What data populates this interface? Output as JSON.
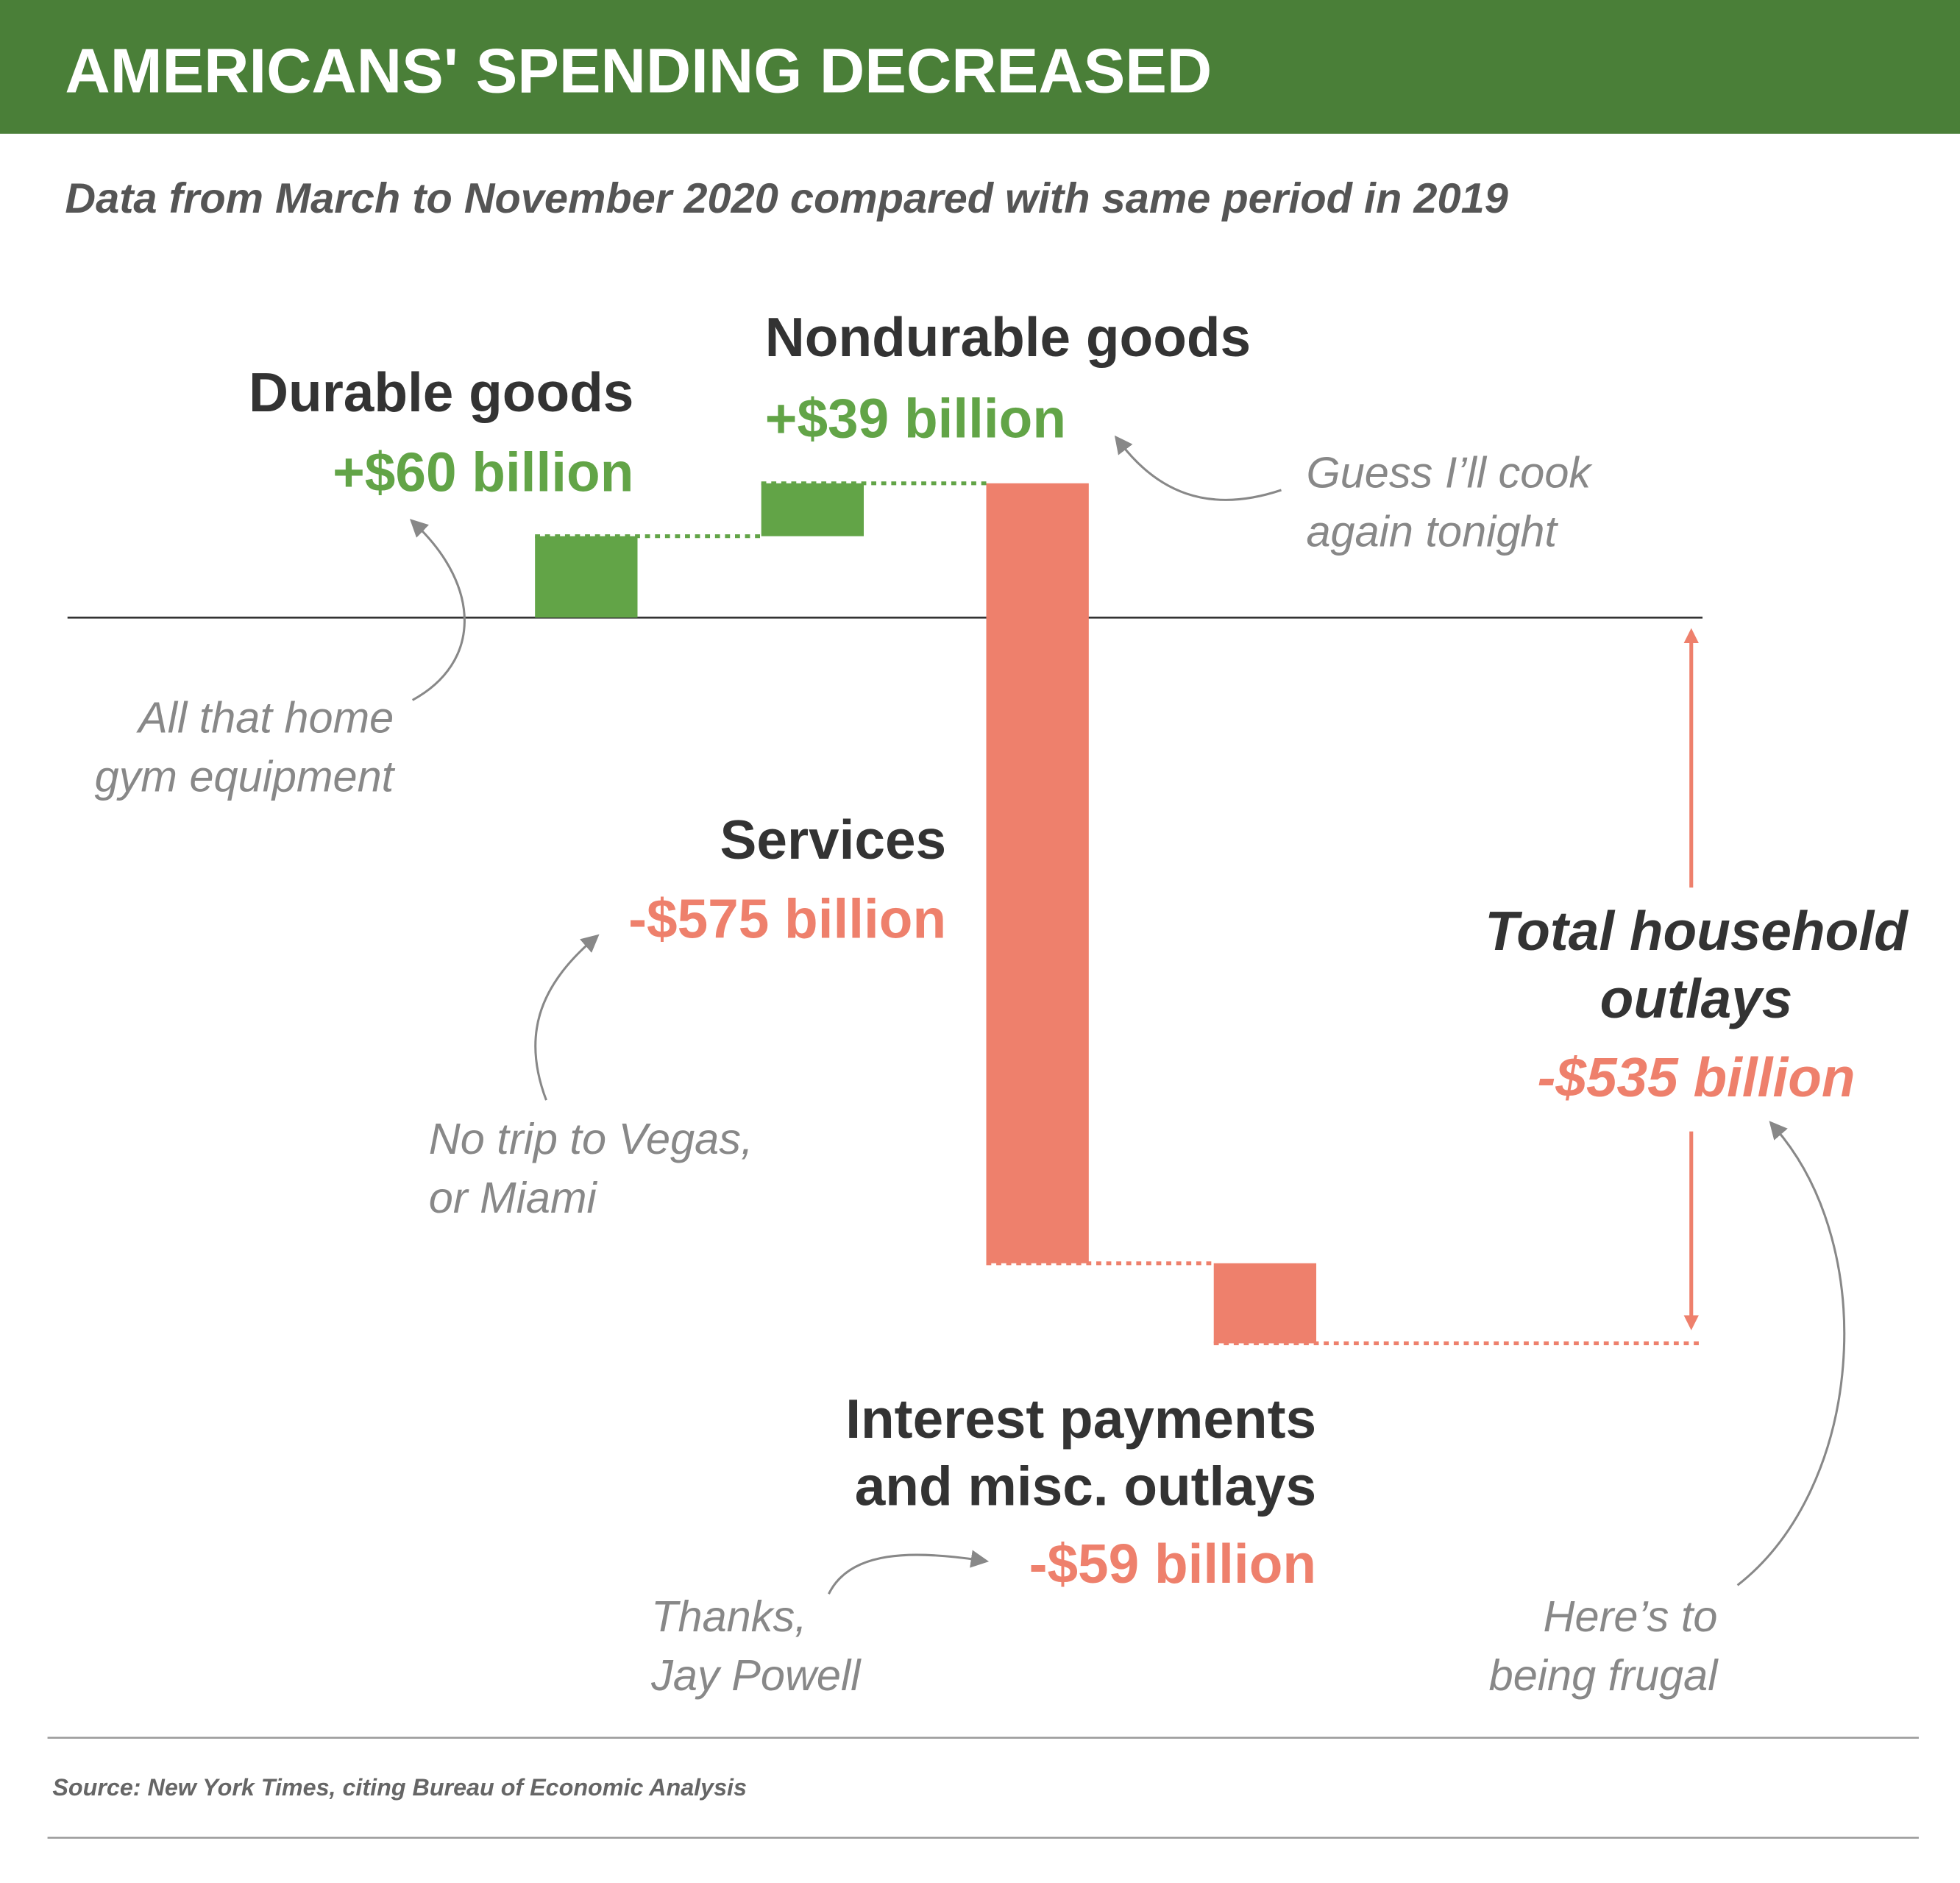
{
  "chart_data": {
    "type": "waterfall",
    "title": "AMERICANS' SPENDING DECREASED",
    "subtitle": "Data from March to November 2020 compared with same period in 2019",
    "categories": [
      "Durable goods",
      "Nondurable goods",
      "Services",
      "Interest payments\nand misc. outlays"
    ],
    "values": [
      60,
      39,
      -575,
      -59
    ],
    "value_labels": [
      "+$60 billion",
      "+$39 billion",
      "-$575 billion",
      "-$59 billion"
    ],
    "colors": {
      "positive": "#62a447",
      "negative": "#ee806c"
    },
    "total": {
      "name": "Total household\noutlays",
      "value": -535,
      "value_label": "-$535 billion"
    },
    "annotations": [
      "All that home\ngym equipment",
      "Guess I’ll cook\nagain tonight",
      "No trip to Vegas,\nor Miami",
      "Thanks,\nJay Powell",
      "Here’s to\nbeing frugal"
    ],
    "source": "Source: New York Times, citing Bureau of Economic Analysis"
  }
}
